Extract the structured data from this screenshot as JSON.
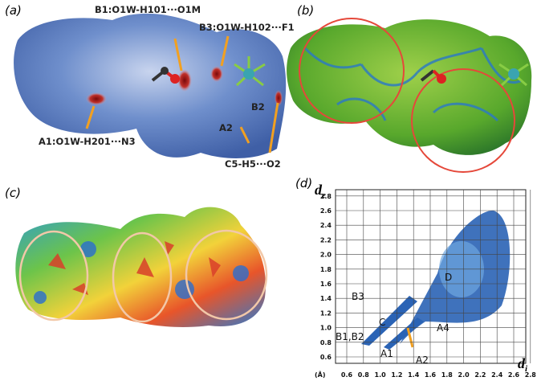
{
  "panels": [
    {
      "label": "(a)",
      "annotations": [
        "B1:O1W-H101···O1M",
        "B3:O1W-H102···F1",
        "B2",
        "A2",
        "A1:O1W-H201···N3",
        "C5-H5···O2"
      ]
    },
    {
      "label": "(b)"
    },
    {
      "label": "(c)"
    },
    {
      "label": "(d)",
      "y_label": {
        "main": "d",
        "sub": "e"
      },
      "x_label": {
        "main": "d",
        "sub": "i"
      },
      "unit": "(Å)",
      "xticks": [
        {
          "value": 0.6,
          "label": "0.6"
        },
        {
          "value": 0.8,
          "label": "0.8"
        },
        {
          "value": 1.0,
          "label": "1.0"
        },
        {
          "value": 1.2,
          "label": "1.2"
        },
        {
          "value": 1.4,
          "label": "1.4"
        },
        {
          "value": 1.6,
          "label": "1.6"
        },
        {
          "value": 1.8,
          "label": "1.8"
        },
        {
          "value": 2.0,
          "label": "2.0"
        },
        {
          "value": 2.2,
          "label": "2.2"
        },
        {
          "value": 2.4,
          "label": "2.4"
        },
        {
          "value": 2.6,
          "label": "2.6"
        },
        {
          "value": 2.8,
          "label": "2.8"
        }
      ],
      "yticks": [
        {
          "value": 0.6,
          "label": "0.6"
        },
        {
          "value": 0.8,
          "label": "0.8"
        },
        {
          "value": 1.0,
          "label": "1.0"
        },
        {
          "value": 1.2,
          "label": "1.2"
        },
        {
          "value": 1.4,
          "label": "1.4"
        },
        {
          "value": 1.6,
          "label": "1.6"
        },
        {
          "value": 1.8,
          "label": "1.8"
        },
        {
          "value": 2.0,
          "label": "2.0"
        },
        {
          "value": 2.2,
          "label": "2.2"
        },
        {
          "value": 2.4,
          "label": "2.4"
        },
        {
          "value": 2.6,
          "label": "2.6"
        },
        {
          "value": 2.8,
          "label": "2.8"
        }
      ],
      "annotations": [
        "D",
        "B3",
        "C",
        "A4",
        "B1,B2",
        "A1",
        "A2"
      ]
    }
  ]
}
